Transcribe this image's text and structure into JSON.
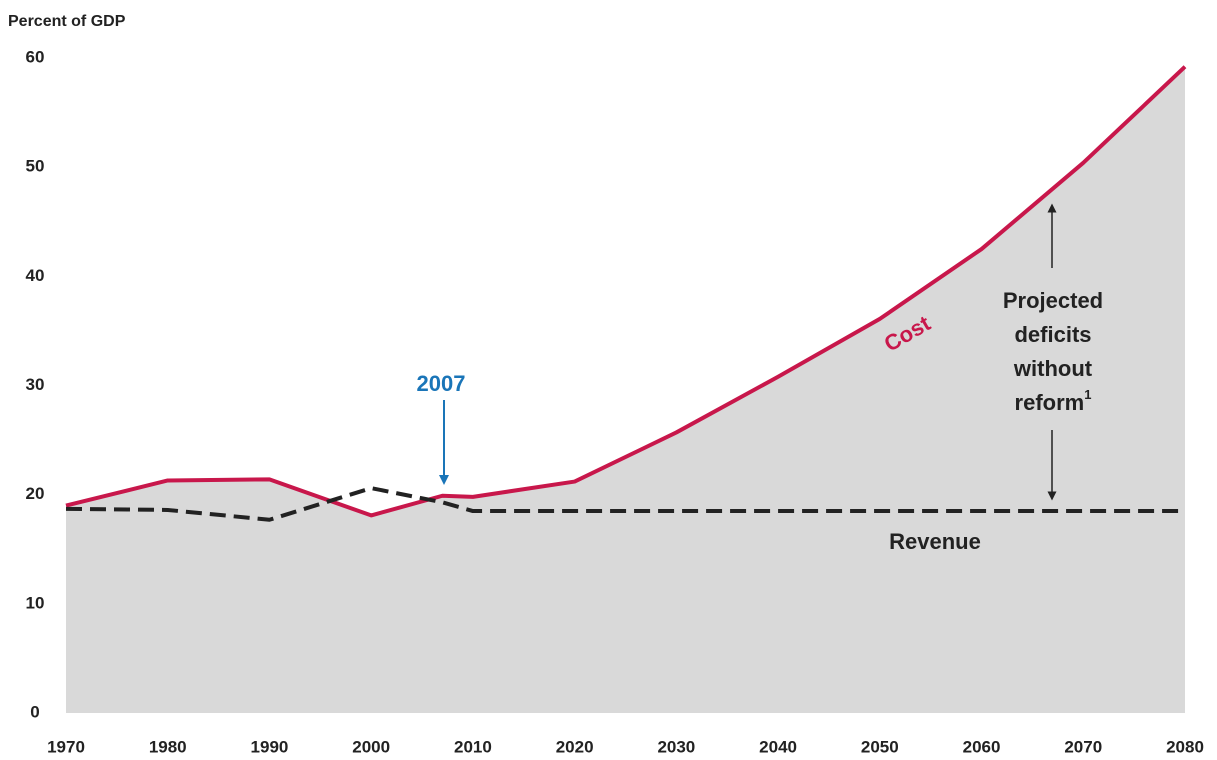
{
  "chart_data": {
    "type": "line",
    "y_axis_label": "Percent of GDP",
    "x": [
      1970,
      1980,
      1990,
      2000,
      2007,
      2010,
      2020,
      2030,
      2040,
      2050,
      2060,
      2070,
      2080
    ],
    "series": [
      {
        "name": "Cost",
        "color": "#c8174b",
        "dashed": false,
        "fill_below": "#d9d9d9",
        "values": [
          19.0,
          21.3,
          21.4,
          18.1,
          19.9,
          19.8,
          21.2,
          25.7,
          30.8,
          36.1,
          42.5,
          50.4,
          59.2
        ]
      },
      {
        "name": "Revenue",
        "color": "#222222",
        "dashed": true,
        "values": [
          18.7,
          18.6,
          17.7,
          20.6,
          19.3,
          18.5,
          18.5,
          18.5,
          18.5,
          18.5,
          18.5,
          18.5,
          18.5
        ]
      }
    ],
    "xlim": [
      1970,
      2080
    ],
    "xticks": [
      1970,
      1980,
      1990,
      2000,
      2010,
      2020,
      2030,
      2040,
      2050,
      2060,
      2070,
      2080
    ],
    "ylim": [
      0,
      60
    ],
    "yticks": [
      0,
      10,
      20,
      30,
      40,
      50,
      60
    ],
    "grid": false,
    "marker_label": "2007",
    "marker_color": "#1a75b8",
    "deficit_label": [
      "Projected",
      "deficits",
      "without",
      "reform"
    ],
    "footnote_marker": "1"
  }
}
